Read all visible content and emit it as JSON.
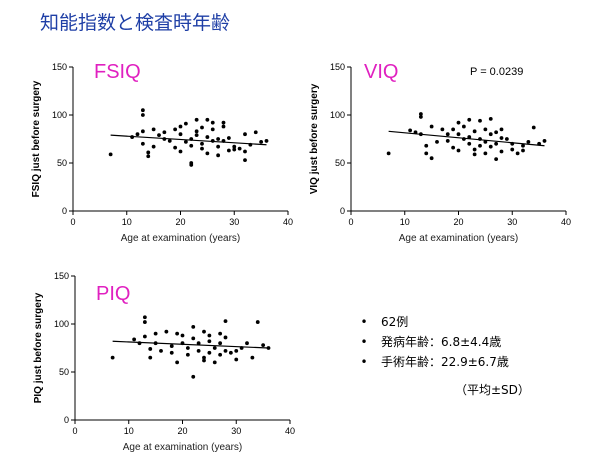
{
  "title": "知能指数と検査時年齢",
  "summary": {
    "items": [
      "62例",
      "発病年齢：6.8±4.4歳",
      "手術年齢：22.9±6.7歳"
    ],
    "note": "（平均±SD）"
  },
  "colors": {
    "title": "#1f3fa6",
    "panel_label": "#e020c0",
    "points": "#000000"
  },
  "chart_data": [
    {
      "type": "scatter",
      "panel_label": "FSIQ",
      "xlabel": "Age at examination (years)",
      "ylabel": "FSIQ just before surgery",
      "xlim": [
        0,
        40
      ],
      "ylim": [
        0,
        150
      ],
      "xticks": [
        0,
        10,
        20,
        30,
        40
      ],
      "yticks": [
        0,
        50,
        100,
        150
      ],
      "annotation": "",
      "trendline": {
        "x": [
          7,
          36
        ],
        "y": [
          79,
          69
        ]
      },
      "points": [
        [
          7,
          59
        ],
        [
          11,
          77
        ],
        [
          12,
          80
        ],
        [
          13,
          105
        ],
        [
          13,
          100
        ],
        [
          13,
          83
        ],
        [
          13,
          70
        ],
        [
          14,
          57
        ],
        [
          14,
          61
        ],
        [
          15,
          85
        ],
        [
          15,
          67
        ],
        [
          16,
          79
        ],
        [
          17,
          75
        ],
        [
          17,
          82
        ],
        [
          18,
          73
        ],
        [
          19,
          85
        ],
        [
          19,
          66
        ],
        [
          20,
          88
        ],
        [
          20,
          80
        ],
        [
          20,
          62
        ],
        [
          21,
          72
        ],
        [
          21,
          91
        ],
        [
          22,
          75
        ],
        [
          22,
          68
        ],
        [
          22,
          48
        ],
        [
          22,
          50
        ],
        [
          23,
          95
        ],
        [
          23,
          83
        ],
        [
          23,
          79
        ],
        [
          24,
          87
        ],
        [
          24,
          65
        ],
        [
          24,
          70
        ],
        [
          25,
          95
        ],
        [
          25,
          77
        ],
        [
          25,
          60
        ],
        [
          26,
          92
        ],
        [
          26,
          73
        ],
        [
          26,
          85
        ],
        [
          27,
          75
        ],
        [
          27,
          67
        ],
        [
          27,
          58
        ],
        [
          28,
          88
        ],
        [
          28,
          92
        ],
        [
          28,
          73
        ],
        [
          29,
          63
        ],
        [
          29,
          76
        ],
        [
          30,
          67
        ],
        [
          30,
          64
        ],
        [
          31,
          65
        ],
        [
          32,
          80
        ],
        [
          32,
          62
        ],
        [
          32,
          53
        ],
        [
          33,
          69
        ],
        [
          34,
          82
        ],
        [
          35,
          72
        ],
        [
          36,
          73
        ]
      ]
    },
    {
      "type": "scatter",
      "panel_label": "VIQ",
      "xlabel": "Age at examination (years)",
      "ylabel": "VIQ just before surgery",
      "xlim": [
        0,
        40
      ],
      "ylim": [
        0,
        150
      ],
      "xticks": [
        0,
        10,
        20,
        30,
        40
      ],
      "yticks": [
        0,
        50,
        100,
        150
      ],
      "annotation": "P = 0.0239",
      "trendline": {
        "x": [
          7,
          36
        ],
        "y": [
          83,
          68
        ]
      },
      "points": [
        [
          7,
          60
        ],
        [
          11,
          84
        ],
        [
          12,
          82
        ],
        [
          13,
          101
        ],
        [
          13,
          98
        ],
        [
          13,
          80
        ],
        [
          14,
          60
        ],
        [
          14,
          68
        ],
        [
          15,
          55
        ],
        [
          15,
          88
        ],
        [
          16,
          72
        ],
        [
          17,
          85
        ],
        [
          18,
          80
        ],
        [
          18,
          73
        ],
        [
          19,
          85
        ],
        [
          19,
          66
        ],
        [
          20,
          92
        ],
        [
          20,
          80
        ],
        [
          20,
          63
        ],
        [
          21,
          75
        ],
        [
          21,
          88
        ],
        [
          22,
          95
        ],
        [
          22,
          77
        ],
        [
          22,
          70
        ],
        [
          23,
          83
        ],
        [
          23,
          64
        ],
        [
          23,
          59
        ],
        [
          24,
          94
        ],
        [
          24,
          75
        ],
        [
          24,
          68
        ],
        [
          25,
          85
        ],
        [
          25,
          72
        ],
        [
          25,
          60
        ],
        [
          26,
          96
        ],
        [
          26,
          80
        ],
        [
          26,
          67
        ],
        [
          27,
          82
        ],
        [
          27,
          70
        ],
        [
          27,
          54
        ],
        [
          28,
          85
        ],
        [
          28,
          76
        ],
        [
          28,
          62
        ],
        [
          29,
          75
        ],
        [
          30,
          70
        ],
        [
          30,
          64
        ],
        [
          31,
          60
        ],
        [
          32,
          63
        ],
        [
          32,
          68
        ],
        [
          33,
          72
        ],
        [
          34,
          87
        ],
        [
          35,
          70
        ],
        [
          36,
          73
        ]
      ]
    },
    {
      "type": "scatter",
      "panel_label": "PIQ",
      "xlabel": "Age at examination (years)",
      "ylabel": "PIQ just before surgery",
      "xlim": [
        0,
        40
      ],
      "ylim": [
        0,
        150
      ],
      "xticks": [
        0,
        10,
        20,
        30,
        40
      ],
      "yticks": [
        0,
        50,
        100,
        150
      ],
      "annotation": "",
      "trendline": {
        "x": [
          7,
          36
        ],
        "y": [
          82,
          75
        ]
      },
      "points": [
        [
          7,
          65
        ],
        [
          11,
          84
        ],
        [
          12,
          80
        ],
        [
          13,
          107
        ],
        [
          13,
          102
        ],
        [
          13,
          87
        ],
        [
          14,
          74
        ],
        [
          14,
          65
        ],
        [
          15,
          80
        ],
        [
          15,
          90
        ],
        [
          16,
          72
        ],
        [
          17,
          92
        ],
        [
          18,
          77
        ],
        [
          18,
          70
        ],
        [
          19,
          90
        ],
        [
          19,
          60
        ],
        [
          20,
          88
        ],
        [
          20,
          80
        ],
        [
          21,
          75
        ],
        [
          21,
          68
        ],
        [
          22,
          97
        ],
        [
          22,
          85
        ],
        [
          22,
          45
        ],
        [
          23,
          80
        ],
        [
          23,
          72
        ],
        [
          24,
          92
        ],
        [
          24,
          65
        ],
        [
          24,
          62
        ],
        [
          25,
          88
        ],
        [
          25,
          82
        ],
        [
          25,
          70
        ],
        [
          26,
          75
        ],
        [
          26,
          60
        ],
        [
          27,
          90
        ],
        [
          27,
          80
        ],
        [
          27,
          68
        ],
        [
          28,
          103
        ],
        [
          28,
          86
        ],
        [
          28,
          72
        ],
        [
          29,
          70
        ],
        [
          30,
          63
        ],
        [
          30,
          72
        ],
        [
          31,
          75
        ],
        [
          32,
          80
        ],
        [
          33,
          65
        ],
        [
          34,
          102
        ],
        [
          35,
          78
        ],
        [
          36,
          75
        ]
      ]
    }
  ]
}
